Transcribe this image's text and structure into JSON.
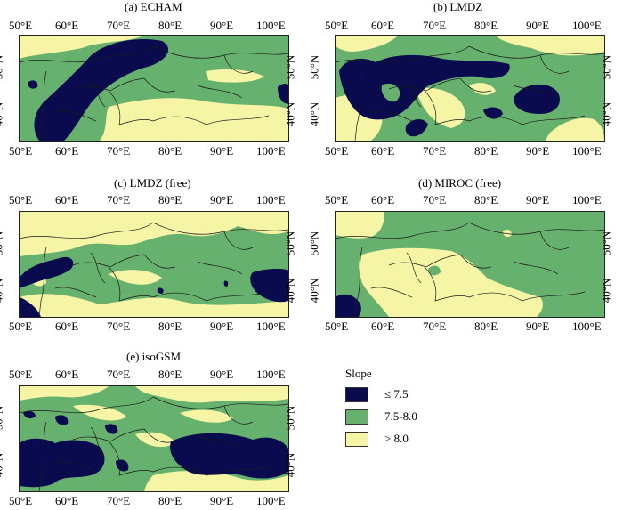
{
  "colors": {
    "low": "#0a0a4f",
    "mid": "#66b16d",
    "high": "#f6f5a6",
    "border": "#1a1a1a"
  },
  "panels": [
    {
      "id": "a",
      "title": "(a) ECHAM"
    },
    {
      "id": "b",
      "title": "(b) LMDZ"
    },
    {
      "id": "c",
      "title": "(c) LMDZ (free)"
    },
    {
      "id": "d",
      "title": "(d) MIROC (free)"
    },
    {
      "id": "e",
      "title": "(e) isoGSM"
    }
  ],
  "axes": {
    "lon_ticks": [
      "50°E",
      "60°E",
      "70°E",
      "80°E",
      "90°E",
      "100°E"
    ],
    "lat_ticks": [
      "50°N",
      "40°N"
    ]
  },
  "legend": {
    "title": "Slope",
    "items": [
      {
        "label": "≤ 7.5",
        "color": "#0a0a4f"
      },
      {
        "label": "7.5-8.0",
        "color": "#66b16d"
      },
      {
        "label": "> 8.0",
        "color": "#f6f5a6"
      }
    ]
  }
}
